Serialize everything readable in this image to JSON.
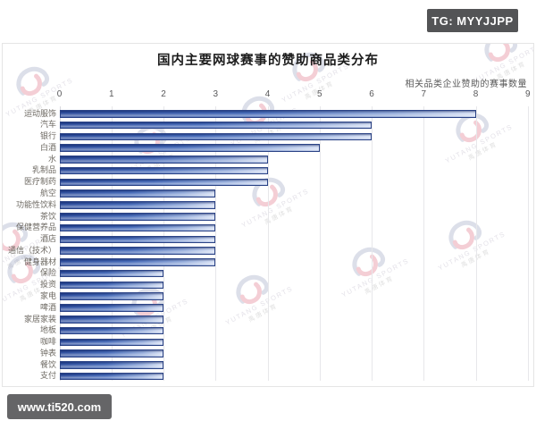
{
  "badges": {
    "tg": "TG: MYYJJPP",
    "site": "www.ti520.com"
  },
  "watermark": {
    "brand_en": "YUTANG SPORTS",
    "brand_cn": "禹唐体育",
    "logo_icon": "yutang-swirl-icon",
    "swirl_gray": "#8d96ba",
    "swirl_red": "#dd6077"
  },
  "chart_data": {
    "type": "bar",
    "orientation": "horizontal",
    "title": "国内主要网球赛事的赞助商品类分布",
    "axis_label": "相关品类企业赞助的赛事数量",
    "categories": [
      "运动服饰",
      "汽车",
      "银行",
      "白酒",
      "水",
      "乳制品",
      "医疗制药",
      "航空",
      "功能性饮料",
      "茶饮",
      "保健营养品",
      "酒店",
      "通信（技术）",
      "健身器材",
      "保险",
      "投资",
      "家电",
      "啤酒",
      "家居家装",
      "地板",
      "咖啡",
      "钟表",
      "餐饮",
      "支付"
    ],
    "values": [
      8,
      6,
      6,
      5,
      4,
      4,
      4,
      3,
      3,
      3,
      3,
      3,
      3,
      3,
      2,
      2,
      2,
      2,
      2,
      2,
      2,
      2,
      2,
      2
    ],
    "x_ticks": [
      "0",
      "1",
      "2",
      "3",
      "4",
      "5",
      "6",
      "7",
      "8",
      "9"
    ],
    "xlim": [
      0,
      9
    ],
    "grid": true,
    "legend": false,
    "bar_border_color": "#2b4386",
    "bar_gradient": [
      "#2c4c9c",
      "#4469b8",
      "#93abdb",
      "#d5dff4"
    ],
    "gridline_color": "#e7e7ea",
    "title_color": "#1c1c1c",
    "label_color": "#6e6a63",
    "tick_color": "#58585a"
  }
}
